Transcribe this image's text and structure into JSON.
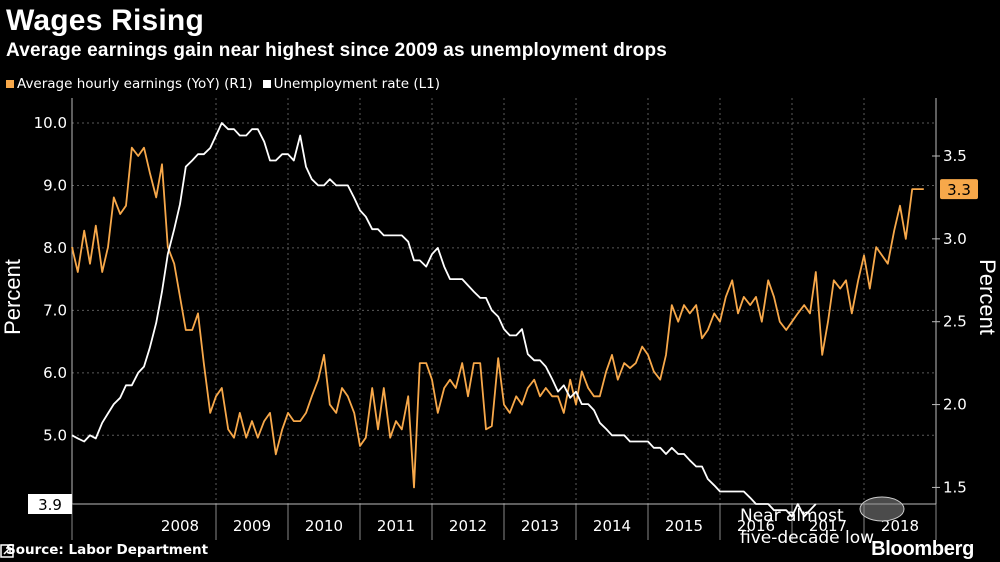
{
  "chart_data": {
    "type": "line",
    "title": "Wages Rising",
    "subtitle": "Average earnings gain near highest since 2009 as unemployment drops",
    "y_left_label": "Percent",
    "y_right_label": "Percent",
    "y_left_range": [
      3.9,
      10.4
    ],
    "y_right_range": [
      1.4,
      3.85
    ],
    "y_left_ticks": [
      "5.0",
      "6.0",
      "7.0",
      "8.0",
      "9.0",
      "10.0"
    ],
    "y_right_ticks": [
      "1.5",
      "2.0",
      "2.5",
      "3.0",
      "3.5"
    ],
    "x_range": [
      2007.0,
      2019.0
    ],
    "x_ticks": [
      "2008",
      "2009",
      "2010",
      "2011",
      "2012",
      "2013",
      "2014",
      "2015",
      "2016",
      "2017",
      "2018"
    ],
    "grid": true,
    "legend_position": "top-left",
    "series": [
      {
        "name": "Average hourly earnings (YoY) (R1)",
        "axis": "right",
        "color": "#f7a84a",
        "points": [
          [
            2007.0,
            2.95
          ],
          [
            2007.08,
            2.8
          ],
          [
            2007.17,
            3.05
          ],
          [
            2007.25,
            2.85
          ],
          [
            2007.33,
            3.08
          ],
          [
            2007.42,
            2.8
          ],
          [
            2007.5,
            2.95
          ],
          [
            2007.58,
            3.25
          ],
          [
            2007.67,
            3.15
          ],
          [
            2007.75,
            3.2
          ],
          [
            2007.83,
            3.55
          ],
          [
            2007.92,
            3.5
          ],
          [
            2008.0,
            3.55
          ],
          [
            2008.08,
            3.4
          ],
          [
            2008.17,
            3.25
          ],
          [
            2008.25,
            3.45
          ],
          [
            2008.33,
            2.95
          ],
          [
            2008.42,
            2.85
          ],
          [
            2008.5,
            2.65
          ],
          [
            2008.58,
            2.45
          ],
          [
            2008.67,
            2.45
          ],
          [
            2008.75,
            2.55
          ],
          [
            2008.83,
            2.25
          ],
          [
            2008.92,
            1.95
          ],
          [
            2009.0,
            2.05
          ],
          [
            2009.08,
            2.1
          ],
          [
            2009.17,
            1.85
          ],
          [
            2009.25,
            1.8
          ],
          [
            2009.33,
            1.95
          ],
          [
            2009.42,
            1.8
          ],
          [
            2009.5,
            1.9
          ],
          [
            2009.58,
            1.8
          ],
          [
            2009.67,
            1.9
          ],
          [
            2009.75,
            1.95
          ],
          [
            2009.83,
            1.7
          ],
          [
            2009.92,
            1.85
          ],
          [
            2010.0,
            1.95
          ],
          [
            2010.08,
            1.9
          ],
          [
            2010.17,
            1.9
          ],
          [
            2010.25,
            1.95
          ],
          [
            2010.33,
            2.05
          ],
          [
            2010.42,
            2.15
          ],
          [
            2010.5,
            2.3
          ],
          [
            2010.58,
            2.0
          ],
          [
            2010.67,
            1.95
          ],
          [
            2010.75,
            2.1
          ],
          [
            2010.83,
            2.05
          ],
          [
            2010.92,
            1.95
          ],
          [
            2011.0,
            1.75
          ],
          [
            2011.08,
            1.8
          ],
          [
            2011.17,
            2.1
          ],
          [
            2011.25,
            1.85
          ],
          [
            2011.33,
            2.1
          ],
          [
            2011.42,
            1.8
          ],
          [
            2011.5,
            1.9
          ],
          [
            2011.58,
            1.85
          ],
          [
            2011.67,
            2.05
          ],
          [
            2011.75,
            1.5
          ],
          [
            2011.83,
            2.25
          ],
          [
            2011.92,
            2.25
          ],
          [
            2012.0,
            2.15
          ],
          [
            2012.08,
            1.95
          ],
          [
            2012.17,
            2.1
          ],
          [
            2012.25,
            2.15
          ],
          [
            2012.33,
            2.1
          ],
          [
            2012.42,
            2.25
          ],
          [
            2012.5,
            2.05
          ],
          [
            2012.58,
            2.25
          ],
          [
            2012.67,
            2.25
          ],
          [
            2012.75,
            1.85
          ],
          [
            2012.83,
            1.87
          ],
          [
            2012.92,
            2.28
          ],
          [
            2013.0,
            2.0
          ],
          [
            2013.08,
            1.95
          ],
          [
            2013.17,
            2.05
          ],
          [
            2013.25,
            2.0
          ],
          [
            2013.33,
            2.1
          ],
          [
            2013.42,
            2.15
          ],
          [
            2013.5,
            2.05
          ],
          [
            2013.58,
            2.1
          ],
          [
            2013.67,
            2.05
          ],
          [
            2013.75,
            2.05
          ],
          [
            2013.83,
            1.95
          ],
          [
            2013.92,
            2.15
          ],
          [
            2014.0,
            2.0
          ],
          [
            2014.08,
            2.2
          ],
          [
            2014.17,
            2.1
          ],
          [
            2014.25,
            2.05
          ],
          [
            2014.33,
            2.05
          ],
          [
            2014.42,
            2.2
          ],
          [
            2014.5,
            2.3
          ],
          [
            2014.58,
            2.15
          ],
          [
            2014.67,
            2.25
          ],
          [
            2014.75,
            2.22
          ],
          [
            2014.83,
            2.25
          ],
          [
            2014.92,
            2.35
          ],
          [
            2015.0,
            2.3
          ],
          [
            2015.08,
            2.2
          ],
          [
            2015.17,
            2.15
          ],
          [
            2015.25,
            2.3
          ],
          [
            2015.33,
            2.6
          ],
          [
            2015.42,
            2.5
          ],
          [
            2015.5,
            2.6
          ],
          [
            2015.58,
            2.55
          ],
          [
            2015.67,
            2.6
          ],
          [
            2015.75,
            2.4
          ],
          [
            2015.83,
            2.45
          ],
          [
            2015.92,
            2.55
          ],
          [
            2016.0,
            2.5
          ],
          [
            2016.08,
            2.65
          ],
          [
            2016.17,
            2.75
          ],
          [
            2016.25,
            2.55
          ],
          [
            2016.33,
            2.65
          ],
          [
            2016.42,
            2.6
          ],
          [
            2016.5,
            2.65
          ],
          [
            2016.58,
            2.5
          ],
          [
            2016.67,
            2.75
          ],
          [
            2016.75,
            2.65
          ],
          [
            2016.83,
            2.5
          ],
          [
            2016.92,
            2.45
          ],
          [
            2017.0,
            2.5
          ],
          [
            2017.08,
            2.55
          ],
          [
            2017.17,
            2.6
          ],
          [
            2017.25,
            2.55
          ],
          [
            2017.33,
            2.8
          ],
          [
            2017.42,
            2.3
          ],
          [
            2017.5,
            2.5
          ],
          [
            2017.58,
            2.75
          ],
          [
            2017.67,
            2.7
          ],
          [
            2017.75,
            2.75
          ],
          [
            2017.83,
            2.55
          ],
          [
            2017.92,
            2.75
          ],
          [
            2018.0,
            2.9
          ],
          [
            2018.08,
            2.7
          ],
          [
            2018.17,
            2.95
          ],
          [
            2018.25,
            2.9
          ],
          [
            2018.33,
            2.85
          ],
          [
            2018.42,
            3.05
          ],
          [
            2018.5,
            3.2
          ],
          [
            2018.58,
            3.0
          ],
          [
            2018.67,
            3.3
          ],
          [
            2018.75,
            3.3
          ],
          [
            2018.83,
            3.3
          ]
        ]
      },
      {
        "name": "Unemployment rate (L1)",
        "axis": "left",
        "color": "#ffffff",
        "points": [
          [
            2007.0,
            5.0
          ],
          [
            2007.08,
            4.95
          ],
          [
            2007.17,
            4.9
          ],
          [
            2007.25,
            5.0
          ],
          [
            2007.33,
            4.95
          ],
          [
            2007.42,
            5.2
          ],
          [
            2007.5,
            5.35
          ],
          [
            2007.58,
            5.5
          ],
          [
            2007.67,
            5.6
          ],
          [
            2007.75,
            5.8
          ],
          [
            2007.83,
            5.8
          ],
          [
            2007.92,
            6.0
          ],
          [
            2008.0,
            6.1
          ],
          [
            2008.08,
            6.4
          ],
          [
            2008.17,
            6.8
          ],
          [
            2008.25,
            7.3
          ],
          [
            2008.33,
            7.9
          ],
          [
            2008.42,
            8.3
          ],
          [
            2008.5,
            8.7
          ],
          [
            2008.58,
            9.3
          ],
          [
            2008.67,
            9.4
          ],
          [
            2008.75,
            9.5
          ],
          [
            2008.83,
            9.5
          ],
          [
            2008.92,
            9.6
          ],
          [
            2009.0,
            9.8
          ],
          [
            2009.08,
            10.0
          ],
          [
            2009.17,
            9.9
          ],
          [
            2009.25,
            9.9
          ],
          [
            2009.33,
            9.8
          ],
          [
            2009.42,
            9.8
          ],
          [
            2009.5,
            9.9
          ],
          [
            2009.58,
            9.9
          ],
          [
            2009.67,
            9.7
          ],
          [
            2009.75,
            9.4
          ],
          [
            2009.83,
            9.4
          ],
          [
            2009.92,
            9.5
          ],
          [
            2010.0,
            9.5
          ],
          [
            2010.08,
            9.4
          ],
          [
            2010.17,
            9.8
          ],
          [
            2010.25,
            9.3
          ],
          [
            2010.33,
            9.1
          ],
          [
            2010.42,
            9.0
          ],
          [
            2010.5,
            9.0
          ],
          [
            2010.58,
            9.1
          ],
          [
            2010.67,
            9.0
          ],
          [
            2010.75,
            9.0
          ],
          [
            2010.83,
            9.0
          ],
          [
            2010.92,
            8.8
          ],
          [
            2011.0,
            8.6
          ],
          [
            2011.08,
            8.5
          ],
          [
            2011.17,
            8.3
          ],
          [
            2011.25,
            8.3
          ],
          [
            2011.33,
            8.2
          ],
          [
            2011.42,
            8.2
          ],
          [
            2011.5,
            8.2
          ],
          [
            2011.58,
            8.2
          ],
          [
            2011.67,
            8.1
          ],
          [
            2011.75,
            7.8
          ],
          [
            2011.83,
            7.8
          ],
          [
            2011.92,
            7.7
          ],
          [
            2012.0,
            7.9
          ],
          [
            2012.08,
            8.0
          ],
          [
            2012.17,
            7.7
          ],
          [
            2012.25,
            7.5
          ],
          [
            2012.33,
            7.5
          ],
          [
            2012.42,
            7.5
          ],
          [
            2012.5,
            7.4
          ],
          [
            2012.58,
            7.3
          ],
          [
            2012.67,
            7.2
          ],
          [
            2012.75,
            7.2
          ],
          [
            2012.83,
            7.0
          ],
          [
            2012.92,
            6.9
          ],
          [
            2013.0,
            6.7
          ],
          [
            2013.08,
            6.6
          ],
          [
            2013.17,
            6.6
          ],
          [
            2013.25,
            6.7
          ],
          [
            2013.33,
            6.3
          ],
          [
            2013.42,
            6.2
          ],
          [
            2013.5,
            6.2
          ],
          [
            2013.58,
            6.1
          ],
          [
            2013.67,
            5.9
          ],
          [
            2013.75,
            5.7
          ],
          [
            2013.83,
            5.8
          ],
          [
            2013.92,
            5.6
          ],
          [
            2014.0,
            5.7
          ],
          [
            2014.08,
            5.5
          ],
          [
            2014.17,
            5.5
          ],
          [
            2014.25,
            5.4
          ],
          [
            2014.33,
            5.2
          ],
          [
            2014.42,
            5.1
          ],
          [
            2014.5,
            5.0
          ],
          [
            2014.58,
            5.0
          ],
          [
            2014.67,
            5.0
          ],
          [
            2014.75,
            4.9
          ],
          [
            2014.83,
            4.9
          ],
          [
            2014.92,
            4.9
          ],
          [
            2015.0,
            4.9
          ],
          [
            2015.08,
            4.8
          ],
          [
            2015.17,
            4.8
          ],
          [
            2015.25,
            4.7
          ],
          [
            2015.33,
            4.8
          ],
          [
            2015.42,
            4.7
          ],
          [
            2015.5,
            4.7
          ],
          [
            2015.58,
            4.6
          ],
          [
            2015.67,
            4.5
          ],
          [
            2015.75,
            4.5
          ],
          [
            2015.83,
            4.3
          ],
          [
            2015.92,
            4.2
          ],
          [
            2016.0,
            4.1
          ],
          [
            2016.08,
            4.1
          ],
          [
            2016.17,
            4.1
          ],
          [
            2016.25,
            4.1
          ],
          [
            2016.33,
            4.1
          ],
          [
            2016.42,
            4.0
          ],
          [
            2016.5,
            3.9
          ],
          [
            2016.58,
            3.9
          ],
          [
            2016.67,
            3.9
          ],
          [
            2016.75,
            3.8
          ],
          [
            2016.83,
            3.8
          ],
          [
            2016.92,
            3.8
          ],
          [
            2017.0,
            3.7
          ],
          [
            2017.08,
            3.9
          ],
          [
            2017.17,
            3.7
          ],
          [
            2017.25,
            3.8
          ],
          [
            2017.33,
            3.9
          ]
        ]
      }
    ],
    "value_labels": [
      {
        "series": "Average hourly earnings (YoY) (R1)",
        "text": "3.3",
        "axis": "right",
        "value": 3.3
      },
      {
        "series": "Unemployment rate (L1)",
        "text": "3.9",
        "axis": "left",
        "value": 3.9
      }
    ],
    "annotations": [
      {
        "text_line1": "Near almost",
        "text_line2": "five-decade low",
        "target_x": 2018.0,
        "target_y_left": 3.9
      }
    ]
  },
  "footer": {
    "source": "Source: Labor Department",
    "brand": "Bloomberg"
  }
}
